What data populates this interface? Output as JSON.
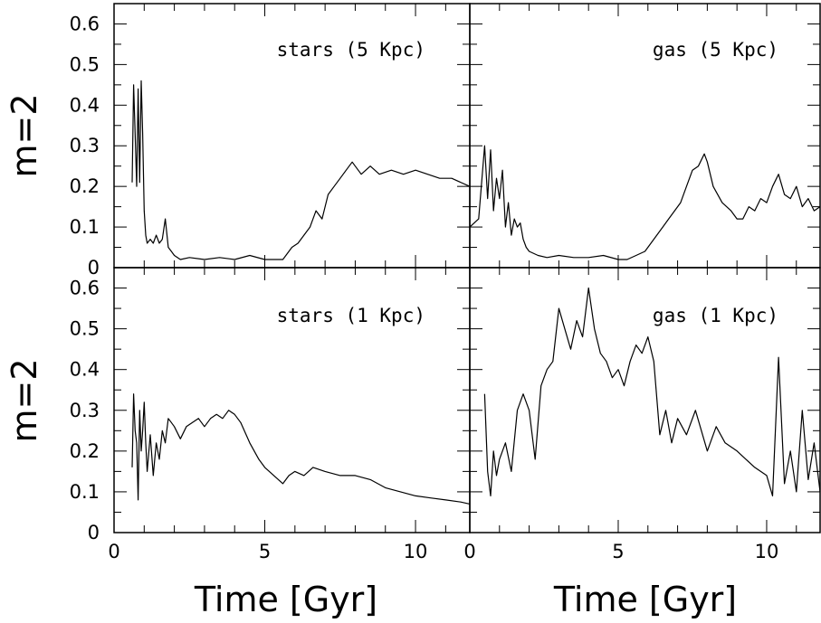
{
  "chart_data": [
    {
      "type": "line",
      "panel": "top-left",
      "label": "stars (5 Kpc)",
      "ylabel": "m=2",
      "xlabel": "",
      "xlim": [
        0,
        11.8
      ],
      "ylim": [
        0,
        0.65
      ],
      "x_ticks": [],
      "y_ticks": [
        "0",
        "0.1",
        "0.2",
        "0.3",
        "0.4",
        "0.5",
        "0.6"
      ],
      "series": [
        {
          "x": [
            0.6,
            0.65,
            0.7,
            0.75,
            0.8,
            0.85,
            0.9,
            0.95,
            1.0,
            1.05,
            1.1,
            1.2,
            1.3,
            1.4,
            1.5,
            1.6,
            1.7,
            1.8,
            1.9,
            2.0,
            2.2,
            2.5,
            3.0,
            3.5,
            4.0,
            4.5,
            5.0,
            5.3,
            5.6,
            5.9,
            6.1,
            6.3,
            6.5,
            6.7,
            6.9,
            7.1,
            7.3,
            7.5,
            7.7,
            7.9,
            8.0,
            8.2,
            8.5,
            8.8,
            9.2,
            9.6,
            10.0,
            10.4,
            10.8,
            11.2,
            11.8
          ],
          "y": [
            0.21,
            0.45,
            0.33,
            0.2,
            0.44,
            0.21,
            0.46,
            0.33,
            0.14,
            0.08,
            0.06,
            0.07,
            0.06,
            0.08,
            0.06,
            0.07,
            0.12,
            0.05,
            0.04,
            0.03,
            0.02,
            0.025,
            0.02,
            0.025,
            0.02,
            0.03,
            0.02,
            0.02,
            0.02,
            0.05,
            0.06,
            0.08,
            0.1,
            0.14,
            0.12,
            0.18,
            0.2,
            0.22,
            0.24,
            0.26,
            0.25,
            0.23,
            0.25,
            0.23,
            0.24,
            0.23,
            0.24,
            0.23,
            0.22,
            0.22,
            0.2
          ]
        }
      ]
    },
    {
      "type": "line",
      "panel": "top-right",
      "label": "gas (5 Kpc)",
      "ylabel": "",
      "xlabel": "",
      "xlim": [
        0,
        11.8
      ],
      "ylim": [
        0,
        0.65
      ],
      "x_ticks": [],
      "y_ticks": [],
      "series": [
        {
          "x": [
            0.0,
            0.3,
            0.5,
            0.6,
            0.7,
            0.8,
            0.9,
            1.0,
            1.1,
            1.2,
            1.3,
            1.4,
            1.5,
            1.6,
            1.7,
            1.8,
            1.9,
            2.0,
            2.3,
            2.6,
            3.0,
            3.5,
            4.0,
            4.5,
            5.0,
            5.3,
            5.6,
            5.9,
            6.1,
            6.3,
            6.5,
            6.7,
            6.9,
            7.1,
            7.3,
            7.5,
            7.7,
            7.9,
            8.0,
            8.2,
            8.5,
            8.8,
            9.0,
            9.2,
            9.4,
            9.6,
            9.8,
            10.0,
            10.2,
            10.4,
            10.6,
            10.8,
            11.0,
            11.2,
            11.4,
            11.6,
            11.8
          ],
          "y": [
            0.1,
            0.12,
            0.3,
            0.17,
            0.29,
            0.14,
            0.22,
            0.17,
            0.24,
            0.1,
            0.16,
            0.08,
            0.12,
            0.1,
            0.11,
            0.07,
            0.05,
            0.04,
            0.03,
            0.025,
            0.03,
            0.025,
            0.025,
            0.03,
            0.02,
            0.02,
            0.03,
            0.04,
            0.06,
            0.08,
            0.1,
            0.12,
            0.14,
            0.16,
            0.2,
            0.24,
            0.25,
            0.28,
            0.26,
            0.2,
            0.16,
            0.14,
            0.12,
            0.12,
            0.15,
            0.14,
            0.17,
            0.16,
            0.2,
            0.23,
            0.18,
            0.17,
            0.2,
            0.15,
            0.17,
            0.14,
            0.15
          ]
        }
      ]
    },
    {
      "type": "line",
      "panel": "bottom-left",
      "label": "stars (1 Kpc)",
      "ylabel": "m=2",
      "xlabel": "Time [Gyr]",
      "xlim": [
        0,
        11.8
      ],
      "ylim": [
        0,
        0.65
      ],
      "x_ticks": [
        "0",
        "5",
        "10"
      ],
      "y_ticks": [
        "0",
        "0.1",
        "0.2",
        "0.3",
        "0.4",
        "0.5",
        "0.6"
      ],
      "series": [
        {
          "x": [
            0.6,
            0.65,
            0.7,
            0.75,
            0.8,
            0.85,
            0.9,
            0.95,
            1.0,
            1.05,
            1.1,
            1.2,
            1.3,
            1.4,
            1.5,
            1.6,
            1.7,
            1.8,
            1.9,
            2.0,
            2.2,
            2.4,
            2.6,
            2.8,
            3.0,
            3.2,
            3.4,
            3.6,
            3.8,
            4.0,
            4.2,
            4.5,
            4.8,
            5.0,
            5.3,
            5.6,
            5.8,
            6.0,
            6.3,
            6.6,
            7.0,
            7.5,
            8.0,
            8.5,
            9.0,
            9.5,
            10.0,
            10.5,
            11.0,
            11.5,
            11.8
          ],
          "y": [
            0.16,
            0.34,
            0.25,
            0.22,
            0.08,
            0.3,
            0.2,
            0.25,
            0.32,
            0.22,
            0.15,
            0.24,
            0.14,
            0.22,
            0.18,
            0.25,
            0.22,
            0.28,
            0.27,
            0.26,
            0.23,
            0.26,
            0.27,
            0.28,
            0.26,
            0.28,
            0.29,
            0.28,
            0.3,
            0.29,
            0.27,
            0.22,
            0.18,
            0.16,
            0.14,
            0.12,
            0.14,
            0.15,
            0.14,
            0.16,
            0.15,
            0.14,
            0.14,
            0.13,
            0.11,
            0.1,
            0.09,
            0.085,
            0.08,
            0.075,
            0.07
          ]
        }
      ]
    },
    {
      "type": "line",
      "panel": "bottom-right",
      "label": "gas (1 Kpc)",
      "ylabel": "",
      "xlabel": "Time [Gyr]",
      "xlim": [
        0,
        11.8
      ],
      "ylim": [
        0,
        0.65
      ],
      "x_ticks": [
        "0",
        "5",
        "10"
      ],
      "y_ticks": [],
      "series": [
        {
          "x": [
            0.5,
            0.6,
            0.7,
            0.8,
            0.9,
            1.0,
            1.2,
            1.4,
            1.6,
            1.8,
            2.0,
            2.2,
            2.4,
            2.6,
            2.8,
            3.0,
            3.2,
            3.4,
            3.6,
            3.8,
            4.0,
            4.2,
            4.4,
            4.6,
            4.8,
            5.0,
            5.2,
            5.4,
            5.6,
            5.8,
            6.0,
            6.2,
            6.4,
            6.6,
            6.8,
            7.0,
            7.3,
            7.6,
            8.0,
            8.3,
            8.6,
            9.0,
            9.3,
            9.6,
            10.0,
            10.2,
            10.4,
            10.6,
            10.8,
            11.0,
            11.2,
            11.4,
            11.6,
            11.8
          ],
          "y": [
            0.34,
            0.15,
            0.09,
            0.2,
            0.14,
            0.18,
            0.22,
            0.15,
            0.3,
            0.34,
            0.3,
            0.18,
            0.36,
            0.4,
            0.42,
            0.55,
            0.5,
            0.45,
            0.52,
            0.48,
            0.6,
            0.5,
            0.44,
            0.42,
            0.38,
            0.4,
            0.36,
            0.42,
            0.46,
            0.44,
            0.48,
            0.42,
            0.24,
            0.3,
            0.22,
            0.28,
            0.24,
            0.3,
            0.2,
            0.26,
            0.22,
            0.2,
            0.18,
            0.16,
            0.14,
            0.09,
            0.43,
            0.12,
            0.2,
            0.1,
            0.3,
            0.13,
            0.22,
            0.1
          ]
        }
      ]
    }
  ]
}
